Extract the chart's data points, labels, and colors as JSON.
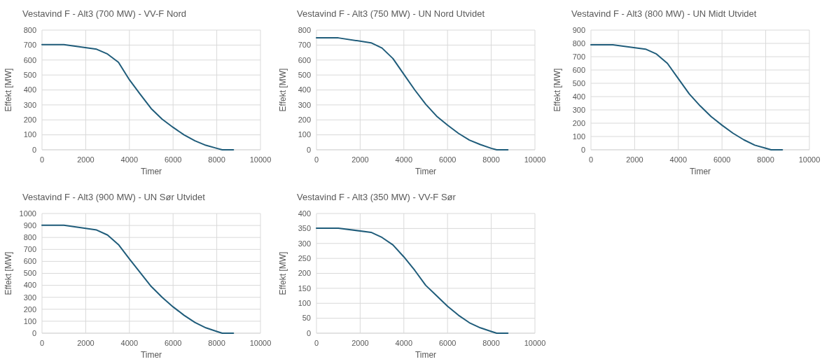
{
  "chart_data": [
    {
      "type": "line",
      "title": "Vestavind F - Alt3 (700 MW) - VV-F Nord",
      "xlabel": "Timer",
      "ylabel": "Effekt [MW]",
      "x": [
        0,
        1000,
        2500,
        3000,
        3500,
        4000,
        4500,
        5000,
        5500,
        6000,
        6500,
        7000,
        7500,
        8000,
        8250,
        8760
      ],
      "series": [
        {
          "color": "#1f5c7a",
          "values": [
            703,
            703,
            672,
            640,
            585,
            468,
            370,
            275,
            205,
            150,
            100,
            60,
            30,
            10,
            0,
            0
          ]
        }
      ],
      "xlim": [
        0,
        10000
      ],
      "xticks": [
        0,
        2000,
        4000,
        6000,
        8000,
        10000
      ],
      "ylim": [
        0,
        800
      ],
      "yticks": [
        0,
        100,
        200,
        300,
        400,
        500,
        600,
        700,
        800
      ],
      "grid": true,
      "marker": "none",
      "line_style": "solid"
    },
    {
      "type": "line",
      "title": "Vestavind F - Alt3 (750 MW) - UN Nord Utvidet",
      "xlabel": "Timer",
      "ylabel": "Effekt [MW]",
      "x": [
        0,
        1000,
        2500,
        3000,
        3500,
        4000,
        4500,
        5000,
        5500,
        6000,
        6500,
        7000,
        7500,
        8000,
        8250,
        8760
      ],
      "series": [
        {
          "color": "#1f5c7a",
          "values": [
            748,
            748,
            715,
            680,
            610,
            505,
            400,
            305,
            225,
            165,
            110,
            65,
            35,
            10,
            0,
            0
          ]
        }
      ],
      "xlim": [
        0,
        10000
      ],
      "xticks": [
        0,
        2000,
        4000,
        6000,
        8000,
        10000
      ],
      "ylim": [
        0,
        800
      ],
      "yticks": [
        0,
        100,
        200,
        300,
        400,
        500,
        600,
        700,
        800
      ],
      "grid": true,
      "marker": "none",
      "line_style": "solid"
    },
    {
      "type": "line",
      "title": "Vestavind F - Alt3 (800 MW) - UN Midt Utvidet",
      "xlabel": "Timer",
      "ylabel": "Effekt [MW]",
      "x": [
        0,
        1000,
        2500,
        3000,
        3500,
        4000,
        4500,
        5000,
        5500,
        6000,
        6500,
        7000,
        7500,
        8000,
        8250,
        8760
      ],
      "series": [
        {
          "color": "#1f5c7a",
          "values": [
            790,
            790,
            757,
            720,
            650,
            535,
            420,
            330,
            250,
            185,
            125,
            75,
            35,
            12,
            0,
            0
          ]
        }
      ],
      "xlim": [
        0,
        10000
      ],
      "xticks": [
        0,
        2000,
        4000,
        6000,
        8000,
        10000
      ],
      "ylim": [
        0,
        900
      ],
      "yticks": [
        0,
        100,
        200,
        300,
        400,
        500,
        600,
        700,
        800,
        900
      ],
      "grid": true,
      "marker": "none",
      "line_style": "solid"
    },
    {
      "type": "line",
      "title": "Vestavind F - Alt3 (900 MW) - UN Sør Utvidet",
      "xlabel": "Timer",
      "ylabel": "Effekt [MW]",
      "x": [
        0,
        1000,
        2500,
        3000,
        3500,
        4000,
        4500,
        5000,
        5500,
        6000,
        6500,
        7000,
        7500,
        8000,
        8250,
        8760
      ],
      "series": [
        {
          "color": "#1f5c7a",
          "values": [
            902,
            902,
            862,
            820,
            740,
            620,
            505,
            390,
            300,
            220,
            150,
            90,
            45,
            15,
            0,
            0
          ]
        }
      ],
      "xlim": [
        0,
        10000
      ],
      "xticks": [
        0,
        2000,
        4000,
        6000,
        8000,
        10000
      ],
      "ylim": [
        0,
        1000
      ],
      "yticks": [
        0,
        100,
        200,
        300,
        400,
        500,
        600,
        700,
        800,
        900,
        1000
      ],
      "grid": true,
      "marker": "none",
      "line_style": "solid"
    },
    {
      "type": "line",
      "title": "Vestavind F - Alt3 (350 MW) - VV-F Sør",
      "xlabel": "Timer",
      "ylabel": "Effekt [MW]",
      "x": [
        0,
        1000,
        2500,
        3000,
        3500,
        4000,
        4500,
        5000,
        5500,
        6000,
        6500,
        7000,
        7500,
        8000,
        8250,
        8760
      ],
      "series": [
        {
          "color": "#1f5c7a",
          "values": [
            351,
            351,
            337,
            320,
            295,
            255,
            210,
            160,
            125,
            90,
            60,
            35,
            18,
            6,
            0,
            0
          ]
        }
      ],
      "xlim": [
        0,
        10000
      ],
      "xticks": [
        0,
        2000,
        4000,
        6000,
        8000,
        10000
      ],
      "ylim": [
        0,
        400
      ],
      "yticks": [
        0,
        50,
        100,
        150,
        200,
        250,
        300,
        350,
        400
      ],
      "grid": true,
      "marker": "none",
      "line_style": "solid"
    }
  ]
}
